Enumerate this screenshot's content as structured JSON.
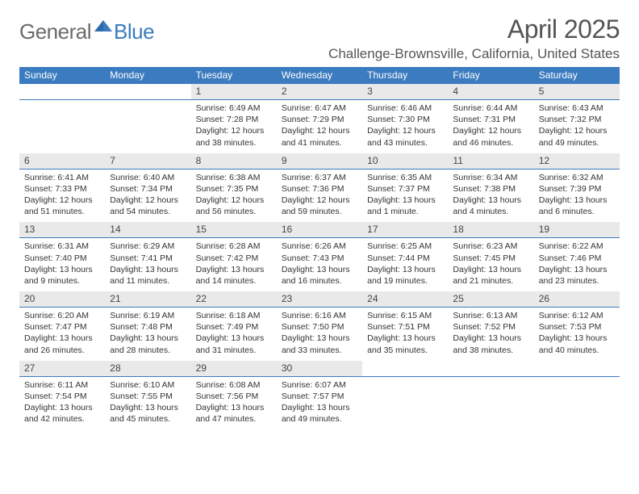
{
  "logo": {
    "general": "General",
    "blue": "Blue"
  },
  "header": {
    "month_title": "April 2025",
    "location": "Challenge-Brownsville, California, United States"
  },
  "colors": {
    "brand_blue": "#3b7bbf",
    "header_text": "#ffffff",
    "daynum_bg": "#e9e9e9",
    "text": "#333333",
    "logo_gray": "#6b6b6b"
  },
  "day_names": [
    "Sunday",
    "Monday",
    "Tuesday",
    "Wednesday",
    "Thursday",
    "Friday",
    "Saturday"
  ],
  "weeks": [
    [
      {
        "day": null
      },
      {
        "day": null
      },
      {
        "day": "1",
        "sunrise": "6:49 AM",
        "sunset": "7:28 PM",
        "daylight": "12 hours and 38 minutes."
      },
      {
        "day": "2",
        "sunrise": "6:47 AM",
        "sunset": "7:29 PM",
        "daylight": "12 hours and 41 minutes."
      },
      {
        "day": "3",
        "sunrise": "6:46 AM",
        "sunset": "7:30 PM",
        "daylight": "12 hours and 43 minutes."
      },
      {
        "day": "4",
        "sunrise": "6:44 AM",
        "sunset": "7:31 PM",
        "daylight": "12 hours and 46 minutes."
      },
      {
        "day": "5",
        "sunrise": "6:43 AM",
        "sunset": "7:32 PM",
        "daylight": "12 hours and 49 minutes."
      }
    ],
    [
      {
        "day": "6",
        "sunrise": "6:41 AM",
        "sunset": "7:33 PM",
        "daylight": "12 hours and 51 minutes."
      },
      {
        "day": "7",
        "sunrise": "6:40 AM",
        "sunset": "7:34 PM",
        "daylight": "12 hours and 54 minutes."
      },
      {
        "day": "8",
        "sunrise": "6:38 AM",
        "sunset": "7:35 PM",
        "daylight": "12 hours and 56 minutes."
      },
      {
        "day": "9",
        "sunrise": "6:37 AM",
        "sunset": "7:36 PM",
        "daylight": "12 hours and 59 minutes."
      },
      {
        "day": "10",
        "sunrise": "6:35 AM",
        "sunset": "7:37 PM",
        "daylight": "13 hours and 1 minute."
      },
      {
        "day": "11",
        "sunrise": "6:34 AM",
        "sunset": "7:38 PM",
        "daylight": "13 hours and 4 minutes."
      },
      {
        "day": "12",
        "sunrise": "6:32 AM",
        "sunset": "7:39 PM",
        "daylight": "13 hours and 6 minutes."
      }
    ],
    [
      {
        "day": "13",
        "sunrise": "6:31 AM",
        "sunset": "7:40 PM",
        "daylight": "13 hours and 9 minutes."
      },
      {
        "day": "14",
        "sunrise": "6:29 AM",
        "sunset": "7:41 PM",
        "daylight": "13 hours and 11 minutes."
      },
      {
        "day": "15",
        "sunrise": "6:28 AM",
        "sunset": "7:42 PM",
        "daylight": "13 hours and 14 minutes."
      },
      {
        "day": "16",
        "sunrise": "6:26 AM",
        "sunset": "7:43 PM",
        "daylight": "13 hours and 16 minutes."
      },
      {
        "day": "17",
        "sunrise": "6:25 AM",
        "sunset": "7:44 PM",
        "daylight": "13 hours and 19 minutes."
      },
      {
        "day": "18",
        "sunrise": "6:23 AM",
        "sunset": "7:45 PM",
        "daylight": "13 hours and 21 minutes."
      },
      {
        "day": "19",
        "sunrise": "6:22 AM",
        "sunset": "7:46 PM",
        "daylight": "13 hours and 23 minutes."
      }
    ],
    [
      {
        "day": "20",
        "sunrise": "6:20 AM",
        "sunset": "7:47 PM",
        "daylight": "13 hours and 26 minutes."
      },
      {
        "day": "21",
        "sunrise": "6:19 AM",
        "sunset": "7:48 PM",
        "daylight": "13 hours and 28 minutes."
      },
      {
        "day": "22",
        "sunrise": "6:18 AM",
        "sunset": "7:49 PM",
        "daylight": "13 hours and 31 minutes."
      },
      {
        "day": "23",
        "sunrise": "6:16 AM",
        "sunset": "7:50 PM",
        "daylight": "13 hours and 33 minutes."
      },
      {
        "day": "24",
        "sunrise": "6:15 AM",
        "sunset": "7:51 PM",
        "daylight": "13 hours and 35 minutes."
      },
      {
        "day": "25",
        "sunrise": "6:13 AM",
        "sunset": "7:52 PM",
        "daylight": "13 hours and 38 minutes."
      },
      {
        "day": "26",
        "sunrise": "6:12 AM",
        "sunset": "7:53 PM",
        "daylight": "13 hours and 40 minutes."
      }
    ],
    [
      {
        "day": "27",
        "sunrise": "6:11 AM",
        "sunset": "7:54 PM",
        "daylight": "13 hours and 42 minutes."
      },
      {
        "day": "28",
        "sunrise": "6:10 AM",
        "sunset": "7:55 PM",
        "daylight": "13 hours and 45 minutes."
      },
      {
        "day": "29",
        "sunrise": "6:08 AM",
        "sunset": "7:56 PM",
        "daylight": "13 hours and 47 minutes."
      },
      {
        "day": "30",
        "sunrise": "6:07 AM",
        "sunset": "7:57 PM",
        "daylight": "13 hours and 49 minutes."
      },
      {
        "day": null
      },
      {
        "day": null
      },
      {
        "day": null
      }
    ]
  ],
  "labels": {
    "sunrise": "Sunrise:",
    "sunset": "Sunset:",
    "daylight": "Daylight:"
  }
}
